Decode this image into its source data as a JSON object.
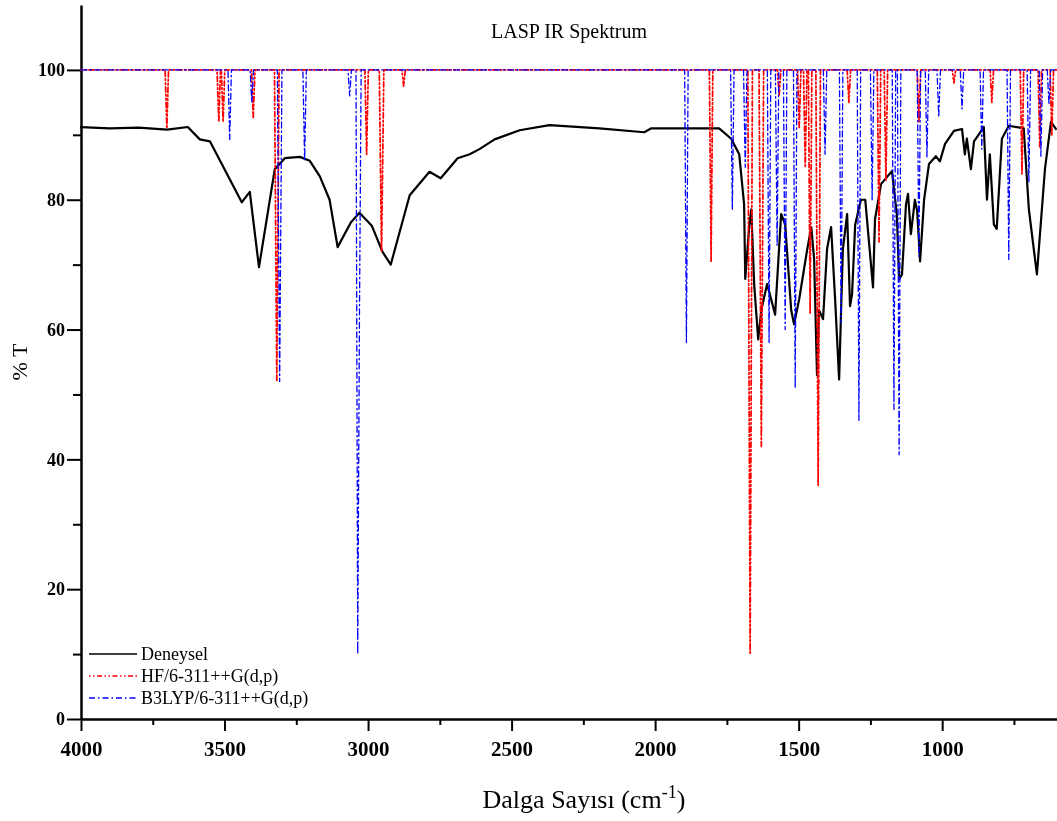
{
  "chart_data": {
    "type": "line",
    "title": "LASP IR Spektrum",
    "xlabel": "Dalga Sayısı (cm$^{-1}$)",
    "ylabel": "% T",
    "legend": "bottom left",
    "grid": false,
    "xlim": [
      4000,
      600
    ],
    "ylim": [
      0,
      110
    ],
    "xticks": [
      4000,
      {
        "value": 3750,
        "label": null
      },
      3500,
      {
        "value": 3250,
        "label": null
      },
      3000,
      {
        "value": 2750,
        "label": null
      },
      2500,
      {
        "value": 2250,
        "label": null
      },
      2000,
      {
        "value": 1750,
        "label": null
      },
      1500,
      {
        "value": 1250,
        "label": null
      },
      1000,
      {
        "value": 750,
        "label": null
      }
    ],
    "yticks": [
      0,
      {
        "value": 10,
        "label": null
      },
      20,
      {
        "value": 30,
        "label": null
      },
      40,
      {
        "value": 50,
        "label": null
      },
      60,
      {
        "value": 70,
        "label": null
      },
      80,
      {
        "value": 90,
        "label": null
      },
      100
    ],
    "series": [
      {
        "name": "Deneysel",
        "color": "#000000",
        "line_style": "solid",
        "x": [
          4000,
          3900,
          3800,
          3700,
          3628,
          3586,
          3551,
          3480,
          3440,
          3412,
          3380,
          3325,
          3290,
          3238,
          3203,
          3168,
          3134,
          3106,
          3060,
          3030,
          2987,
          2950,
          2921,
          2855,
          2786,
          2747,
          2688,
          2646,
          2612,
          2559,
          2472,
          2368,
          2194,
          2038,
          2013,
          1777,
          1735,
          1707,
          1690,
          1686,
          1672,
          1665,
          1655,
          1641,
          1630,
          1610,
          1596,
          1582,
          1561,
          1547,
          1526,
          1516,
          1498,
          1470,
          1456,
          1446,
          1436,
          1429,
          1415,
          1401,
          1387,
          1373,
          1359,
          1346,
          1331,
          1321,
          1314,
          1303,
          1283,
          1268,
          1241,
          1234,
          1213,
          1175,
          1158,
          1150,
          1140,
          1126,
          1119,
          1109,
          1095,
          1087,
          1077,
          1063,
          1046,
          1022,
          1008,
          990,
          959,
          931,
          921,
          914,
          900,
          889,
          855,
          844,
          834,
          820,
          810,
          792,
          768,
          716,
          698,
          670,
          642,
          621,
          604
        ],
        "values": [
          91.2,
          91,
          91.1,
          90.8,
          91.2,
          89.3,
          89,
          83,
          79.6,
          81.2,
          69.6,
          84.7,
          86.4,
          86.6,
          86,
          83.6,
          80,
          72.7,
          76.5,
          78,
          76,
          72,
          70,
          80.7,
          84.3,
          83.3,
          86.4,
          87,
          87.8,
          89.3,
          90.7,
          91.5,
          91,
          90.4,
          91,
          91,
          89.4,
          87,
          79.3,
          67.8,
          76,
          78.5,
          67,
          58.5,
          63,
          67,
          64.7,
          62.3,
          77.8,
          76.2,
          63,
          60.8,
          64.7,
          72.4,
          75.8,
          70.8,
          53,
          63,
          61.6,
          72.4,
          75.8,
          64.7,
          52.3,
          72.4,
          77.8,
          63.6,
          65.4,
          76.2,
          80,
          80,
          66.5,
          77,
          82.4,
          84.4,
          77.8,
          67.7,
          68.5,
          79.3,
          80.9,
          74.7,
          80,
          78.2,
          70.5,
          80,
          85.5,
          86.7,
          85.9,
          88.6,
          90.6,
          90.9,
          87,
          89.4,
          84.7,
          89,
          91.2,
          80,
          87,
          76.2,
          75.5,
          89.4,
          91.4,
          91,
          78.5,
          68.5,
          84.7,
          92,
          90.9
        ]
      },
      {
        "name": "HF/6-311++G(d,p)",
        "color": "#ff0000",
        "line_style": "dotted",
        "x": [
          4000,
          3707,
          3701,
          3695,
          3526,
          3520,
          3514,
          3511,
          3505,
          3499,
          3406,
          3400,
          3394,
          3326,
          3318,
          3310,
          3011,
          3005,
          2999,
          2961,
          2953,
          2945,
          2882,
          2876,
          2870,
          1811,
          1805,
          1799,
          1677,
          1669,
          1661,
          1638,
          1630,
          1622,
          1574,
          1568,
          1562,
          1504,
          1498,
          1492,
          1483,
          1477,
          1471,
          1466,
          1460,
          1454,
          1440,
          1432,
          1424,
          1331,
          1325,
          1319,
          1226,
          1220,
          1214,
          1202,
          1196,
          1190,
          1087,
          1081,
          1075,
          965,
          959,
          953,
          833,
          827,
          821,
          728,
          722,
          716,
          666,
          660,
          654,
          624,
          618,
          612,
          600
        ],
        "values": [
          100,
          100,
          91,
          100,
          100,
          92,
          100,
          100,
          92,
          100,
          100,
          92.5,
          100,
          100,
          52,
          100,
          100,
          87,
          100,
          100,
          72,
          100,
          100,
          97.5,
          100,
          100,
          70.5,
          100,
          100,
          10,
          100,
          100,
          42,
          100,
          100,
          96,
          100,
          100,
          91,
          100,
          100,
          85,
          100,
          100,
          62.5,
          100,
          100,
          36,
          100,
          100,
          95,
          100,
          100,
          73.5,
          100,
          100,
          83,
          100,
          100,
          92,
          100,
          100,
          98,
          100,
          100,
          95,
          100,
          100,
          84,
          100,
          100,
          88,
          100,
          100,
          90,
          100,
          100
        ]
      },
      {
        "name": "B3LYP/6-311++G(d,p)",
        "color": "#0000ff",
        "line_style": "dashed",
        "x": [
          4000,
          3488,
          3482,
          3476,
          3411,
          3405,
          3399,
          3316,
          3308,
          3300,
          3227,
          3221,
          3215,
          3070,
          3064,
          3058,
          3042,
          3036,
          3030,
          3024,
          1897,
          1891,
          1885,
          1737,
          1731,
          1725,
          1692,
          1686,
          1680,
          1609,
          1603,
          1597,
          1581,
          1575,
          1569,
          1553,
          1547,
          1541,
          1518,
          1512,
          1506,
          1414,
          1408,
          1402,
          1358,
          1352,
          1346,
          1296,
          1290,
          1284,
          1250,
          1244,
          1238,
          1174,
          1168,
          1162,
          1156,
          1150,
          1144,
          1087,
          1081,
          1075,
          1059,
          1053,
          1047,
          1018,
          1012,
          1006,
          937,
          931,
          925,
          868,
          862,
          856,
          774,
          768,
          762,
          704,
          698,
          692,
          662,
          656,
          650,
          634,
          628,
          622,
          600
        ],
        "values": [
          100,
          100,
          89.3,
          100,
          100,
          95,
          100,
          100,
          52,
          100,
          100,
          86,
          100,
          100,
          96,
          100,
          100,
          10,
          62,
          100,
          100,
          58,
          100,
          100,
          78.5,
          100,
          100,
          85,
          100,
          100,
          58,
          100,
          100,
          73,
          100,
          100,
          60,
          100,
          100,
          51,
          100,
          100,
          87,
          100,
          100,
          61,
          100,
          100,
          46,
          100,
          100,
          80,
          100,
          100,
          47.7,
          100,
          100,
          40.7,
          100,
          100,
          71.3,
          100,
          100,
          86.6,
          100,
          100,
          92.7,
          100,
          100,
          94,
          100,
          100,
          87.8,
          100,
          100,
          70.8,
          100,
          100,
          82.7,
          100,
          100,
          86.7,
          100,
          100,
          94.7,
          100,
          100
        ]
      }
    ]
  }
}
